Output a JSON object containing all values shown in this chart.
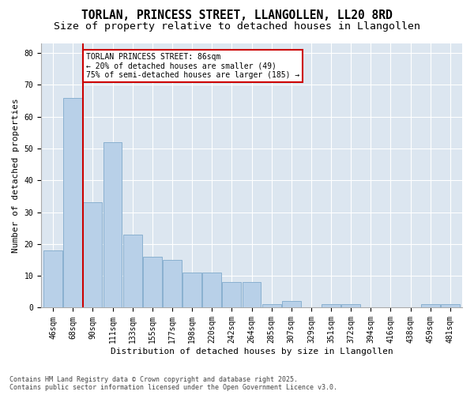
{
  "title": "TORLAN, PRINCESS STREET, LLANGOLLEN, LL20 8RD",
  "subtitle": "Size of property relative to detached houses in Llangollen",
  "xlabel": "Distribution of detached houses by size in Llangollen",
  "ylabel": "Number of detached properties",
  "bar_values": [
    18,
    66,
    33,
    52,
    23,
    16,
    15,
    11,
    11,
    8,
    8,
    1,
    2,
    0,
    1,
    1,
    0,
    0,
    0,
    1,
    1
  ],
  "categories": [
    "46sqm",
    "68sqm",
    "90sqm",
    "111sqm",
    "133sqm",
    "155sqm",
    "177sqm",
    "198sqm",
    "220sqm",
    "242sqm",
    "264sqm",
    "285sqm",
    "307sqm",
    "329sqm",
    "351sqm",
    "372sqm",
    "394sqm",
    "416sqm",
    "438sqm",
    "459sqm",
    "481sqm"
  ],
  "bar_color": "#b8d0e8",
  "bar_edge_color": "#8ab0d0",
  "redline_x": 1.5,
  "annotation_title": "TORLAN PRINCESS STREET: 86sqm",
  "annotation_line1": "← 20% of detached houses are smaller (49)",
  "annotation_line2": "75% of semi-detached houses are larger (185) →",
  "annotation_box_color": "#ffffff",
  "annotation_box_edge": "#cc0000",
  "redline_color": "#cc0000",
  "ylim": [
    0,
    83
  ],
  "yticks": [
    0,
    10,
    20,
    30,
    40,
    50,
    60,
    70,
    80
  ],
  "background_color": "#dce6f0",
  "footer_line1": "Contains HM Land Registry data © Crown copyright and database right 2025.",
  "footer_line2": "Contains public sector information licensed under the Open Government Licence v3.0.",
  "title_fontsize": 10.5,
  "subtitle_fontsize": 9.5,
  "axis_label_fontsize": 8,
  "tick_fontsize": 7,
  "annotation_fontsize": 7,
  "footer_fontsize": 6
}
